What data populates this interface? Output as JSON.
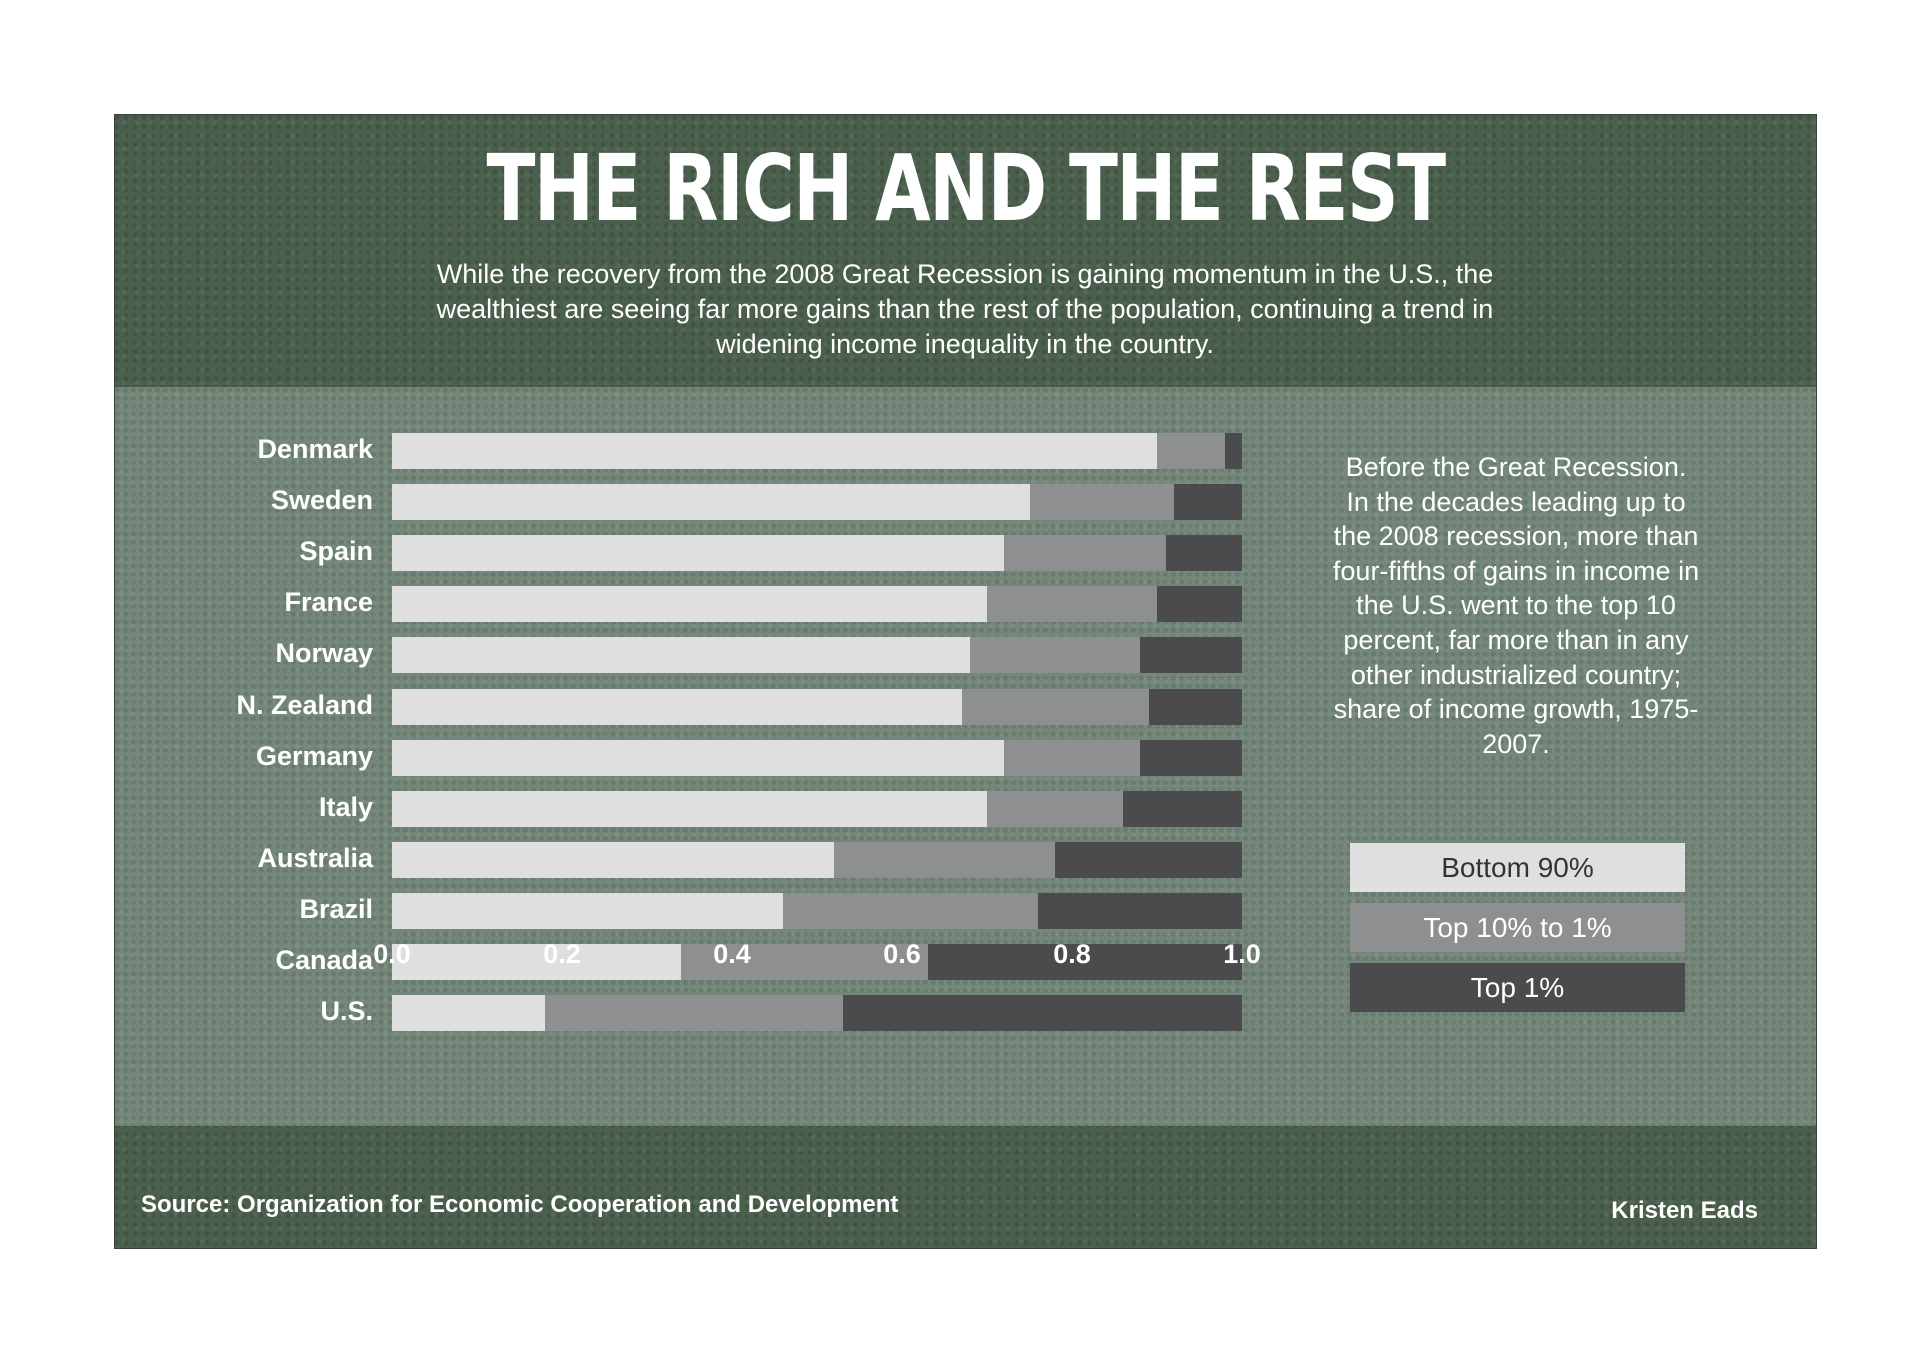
{
  "title": "THE RICH AND THE REST",
  "subtitle": "While the recovery from the 2008 Great Recession is gaining momentum in the U.S., the wealthiest are seeing far more gains than the rest of the population, continuing a trend in widening income inequality in the country.",
  "note": "Before the Great Recession. In the decades leading up to the 2008 recession, more than four-fifths of gains in income in the U.S. went to the top 10 percent, far more than in any other industrialized country; share of income growth, 1975-2007.",
  "source": "Source: Organization for Economic Cooperation and Development",
  "credit": "Kristen Eads",
  "chart_data": {
    "type": "bar",
    "orientation": "horizontal",
    "stacked": true,
    "categories": [
      "Denmark",
      "Sweden",
      "Spain",
      "France",
      "Norway",
      "N. Zealand",
      "Germany",
      "Italy",
      "Australia",
      "Brazil",
      "Canada",
      "U.S."
    ],
    "series": [
      {
        "name": "Bottom 90%",
        "color": "#dfdfe0",
        "values": [
          0.9,
          0.75,
          0.72,
          0.7,
          0.68,
          0.67,
          0.72,
          0.7,
          0.52,
          0.46,
          0.34,
          0.18
        ]
      },
      {
        "name": "Top 10% to 1%",
        "color": "#8e8f91",
        "values": [
          0.08,
          0.17,
          0.19,
          0.2,
          0.2,
          0.22,
          0.16,
          0.16,
          0.26,
          0.3,
          0.29,
          0.35
        ]
      },
      {
        "name": "Top 1%",
        "color": "#4b4b4e",
        "values": [
          0.02,
          0.08,
          0.09,
          0.1,
          0.12,
          0.11,
          0.12,
          0.14,
          0.22,
          0.24,
          0.37,
          0.47
        ]
      }
    ],
    "xlim": [
      0,
      1
    ],
    "xticks": [
      "0.0",
      "0.2",
      "0.4",
      "0.6",
      "0.8",
      "1.0"
    ],
    "grid": false,
    "legend": "right"
  }
}
